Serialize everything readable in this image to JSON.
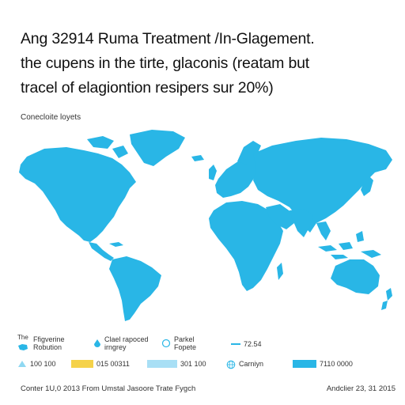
{
  "title_lines": [
    "Ang 32914 Ruma Treatment /In-Glagement.",
    "the cupens in the tirte, glaconis (reatam but",
    "tracel of elagiontion resipers sur 20%)"
  ],
  "map_subtitle": "Conecloite loyets",
  "colors": {
    "land": "#29b6e6",
    "land_light": "#8fd8f2",
    "yellow": "#f5d24a",
    "light_blue": "#a8dff5"
  },
  "legend": {
    "row1": [
      {
        "icon": "map-region-icon",
        "label_top": "The",
        "label": "Ffigverine",
        "label2": "Robution"
      },
      {
        "icon": "drop-icon",
        "label": "Clael rapoced",
        "label2": "irngrey"
      },
      {
        "icon": "open-circle-icon",
        "label": "Parkel",
        "label2": "Fopete"
      },
      {
        "icon": "dash-icon",
        "label": "72.54"
      }
    ],
    "row2": [
      {
        "icon": "triangle-icon",
        "label": "100 100"
      },
      {
        "icon": "yellow-swatch",
        "label": "015 00311"
      },
      {
        "icon": "light-blue-swatch",
        "label": "301 100"
      },
      {
        "icon": "globe-icon",
        "label": "Carniyn"
      },
      {
        "icon": "blue-swatch",
        "label": "7110 0000"
      }
    ]
  },
  "footer": {
    "source": "Conter 1U,0 2013 From Umstal Jasoore Trate Fygch",
    "date": "Andclier 23, 31 2015"
  }
}
